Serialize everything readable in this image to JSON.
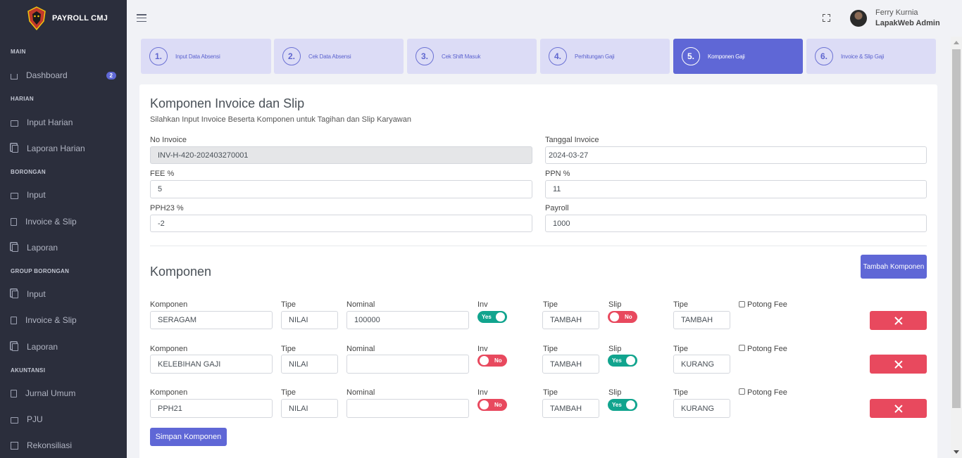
{
  "brand": {
    "name": "PAYROLL CMJ"
  },
  "sidebar": {
    "sections": [
      "MAIN",
      "HARIAN",
      "BORONGAN",
      "GROUP BORONGAN",
      "AKUNTANSI"
    ],
    "items": [
      {
        "label": "Dashboard",
        "icon": "home-icon",
        "badge": "2"
      },
      {
        "label": "Input Harian",
        "icon": "briefcase-icon"
      },
      {
        "label": "Laporan Harian",
        "icon": "copy-icon"
      },
      {
        "label": "Input",
        "icon": "briefcase-icon"
      },
      {
        "label": "Invoice & Slip",
        "icon": "document-icon"
      },
      {
        "label": "Laporan",
        "icon": "copy-icon"
      },
      {
        "label": "Input",
        "icon": "briefcase-icon"
      },
      {
        "label": "Invoice & Slip",
        "icon": "document-icon"
      },
      {
        "label": "Laporan",
        "icon": "copy-icon"
      },
      {
        "label": "Jurnal Umum",
        "icon": "ledger-icon"
      },
      {
        "label": "PJU",
        "icon": "window-icon"
      },
      {
        "label": "Rekonsiliasi",
        "icon": "edit-icon"
      }
    ]
  },
  "header": {
    "user_name": "Ferry Kurnia",
    "user_role": "LapakWeb Admin"
  },
  "steps": [
    {
      "num": "1.",
      "label": "Input Data Absensi"
    },
    {
      "num": "2.",
      "label": "Cek Data Absensi"
    },
    {
      "num": "3.",
      "label": "Cek Shift Masuk"
    },
    {
      "num": "4.",
      "label": "Perhitungan Gaji"
    },
    {
      "num": "5.",
      "label": "Komponen Gaji",
      "active": true
    },
    {
      "num": "6.",
      "label": "Invoice & Slip Gaji"
    }
  ],
  "form": {
    "title": "Komponen Invoice dan Slip",
    "description": "Silahkan Input Invoice Beserta Komponen untuk Tagihan dan Slip Karyawan",
    "no_invoice_label": "No Invoice",
    "no_invoice_value": "INV-H-420-202403270001",
    "tanggal_label": "Tanggal Invoice",
    "tanggal_value": "2024-03-27",
    "fee_label": "FEE %",
    "fee_value": "5",
    "ppn_label": "PPN %",
    "ppn_value": "11",
    "pph_label": "PPH23 %",
    "pph_value": "-2",
    "payroll_label": "Payroll",
    "payroll_value": "1000"
  },
  "komponen": {
    "title": "Komponen",
    "add_button": "Tambah Komponen",
    "save_button": "Simpan Komponen",
    "col_komponen": "Komponen",
    "col_tipe": "Tipe",
    "col_nominal": "Nominal",
    "col_inv": "Inv",
    "col_slip": "Slip",
    "potong_fee": "Potong Fee",
    "rows": [
      {
        "nama": "SERAGAM",
        "tipe": "NILAI",
        "nominal": "100000",
        "inv": "Yes",
        "inv_tipe": "TAMBAH",
        "slip": "No",
        "slip_tipe": "TAMBAH"
      },
      {
        "nama": "KELEBIHAN GAJI",
        "tipe": "NILAI",
        "nominal": "",
        "inv": "No",
        "inv_tipe": "TAMBAH",
        "slip": "Yes",
        "slip_tipe": "KURANG"
      },
      {
        "nama": "PPH21",
        "tipe": "NILAI",
        "nominal": "",
        "inv": "No",
        "inv_tipe": "TAMBAH",
        "slip": "Yes",
        "slip_tipe": "KURANG"
      }
    ]
  }
}
